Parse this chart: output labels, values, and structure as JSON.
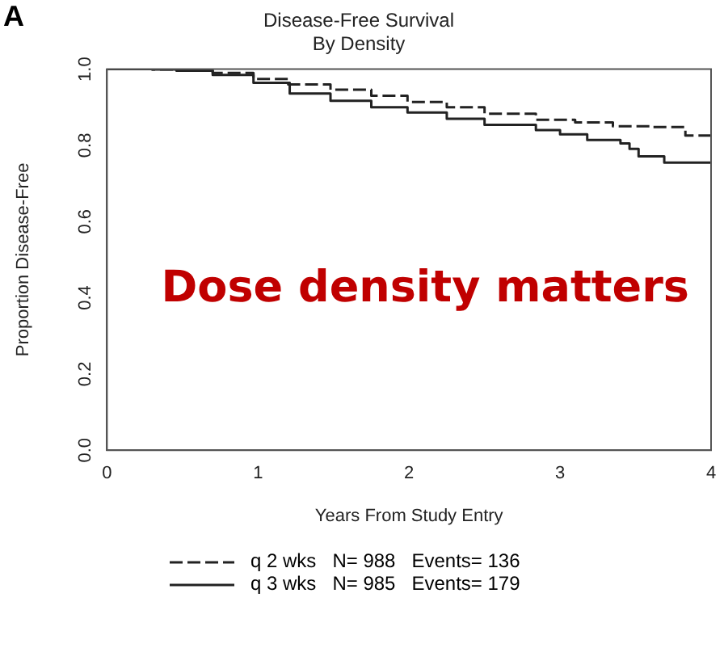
{
  "chart_data": {
    "type": "step",
    "title": "Disease-Free Survival",
    "subtitle": "By Density",
    "xlabel": "Years From Study Entry",
    "ylabel": "Proportion Disease-Free",
    "xlim": [
      0,
      4
    ],
    "xticks": [
      0,
      1,
      2,
      3,
      4
    ],
    "ylim": [
      0,
      1
    ],
    "yticks": [
      {
        "value": 0,
        "label": "0.0"
      },
      0.2,
      0.4,
      0.6,
      0.8,
      {
        "value": 1,
        "label": "1.0"
      }
    ],
    "grid": false,
    "legend": "bottom",
    "marker": "none",
    "series": [
      {
        "name": "q 2 wks",
        "color": "#222222",
        "line_style": "dashed",
        "x": [
          0,
          0.3,
          0.46,
          0.7,
          0.97,
          1.2,
          1.48,
          1.75,
          1.99,
          2.25,
          2.5,
          2.84,
          3.1,
          3.35,
          3.6,
          3.83,
          3.83,
          4
        ],
        "values": [
          1,
          0.999,
          0.997,
          0.99,
          0.974,
          0.96,
          0.946,
          0.93,
          0.914,
          0.9,
          0.883,
          0.867,
          0.86,
          0.85,
          0.848,
          0.847,
          0.826,
          0.826
        ]
      },
      {
        "name": "q 3 wks",
        "color": "#222222",
        "line_style": "solid",
        "x": [
          0,
          0.3,
          0.46,
          0.7,
          0.97,
          1.21,
          1.48,
          1.75,
          1.99,
          2.25,
          2.5,
          2.84,
          3.0,
          3.18,
          3.4,
          3.46,
          3.52,
          3.69,
          3.69,
          4
        ],
        "values": [
          1,
          0.999,
          0.996,
          0.985,
          0.964,
          0.936,
          0.917,
          0.9,
          0.886,
          0.87,
          0.854,
          0.84,
          0.829,
          0.814,
          0.805,
          0.791,
          0.771,
          0.761,
          0.755,
          0.755
        ]
      }
    ],
    "annotations": [
      "N= 988",
      "Events= 136",
      "N= 985",
      "Events= 179",
      "A",
      "Dose density matters"
    ]
  }
}
